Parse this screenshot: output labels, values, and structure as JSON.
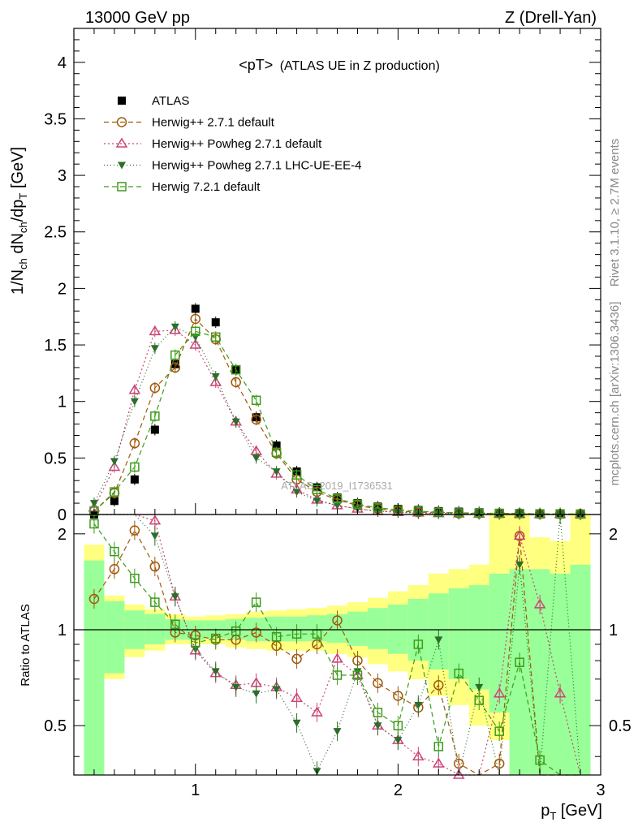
{
  "header": {
    "energy": "13000 GeV pp",
    "process": "Z (Drell-Yan)",
    "plot_title_main": "<pT>",
    "plot_title_sub": "(ATLAS UE in Z production)",
    "rivet_note": "Rivet 3.1.10, ≥ 2.7M events",
    "mcplots_note": "mcplots.cern.ch [arXiv:1306.3436]",
    "analysis_id": "ATLAS_2019_I1736531"
  },
  "axes": {
    "ylabel_main": "1/N_ch dN_ch/dp_T [GeV]",
    "ylabel_ratio": "Ratio to ATLAS",
    "xlabel": "p_T [GeV]"
  },
  "colors": {
    "data": "#000000",
    "herwigpp": "#a0580a",
    "powheg": "#cc4477",
    "powheg_ee4": "#2a6e2a",
    "herwig7": "#3d9b1a",
    "band_inner": "#99ff99",
    "band_outer": "#ffff80"
  },
  "chart_data": {
    "type": "line",
    "xlim": [
      0.4,
      3.0
    ],
    "ylim_main": [
      0,
      4.3
    ],
    "ylim_ratio": [
      0.35,
      2.3
    ],
    "xticks": [
      1,
      2,
      3
    ],
    "yticks_main": [
      0,
      0.5,
      1,
      1.5,
      2,
      2.5,
      3,
      3.5,
      4
    ],
    "yticks_ratio": [
      0.5,
      1,
      2
    ],
    "x": [
      0.5,
      0.6,
      0.7,
      0.8,
      0.9,
      1.0,
      1.1,
      1.2,
      1.3,
      1.4,
      1.5,
      1.6,
      1.7,
      1.8,
      1.9,
      2.0,
      2.1,
      2.2,
      2.3,
      2.4,
      2.5,
      2.6,
      2.7,
      2.8,
      2.9
    ],
    "series": [
      {
        "name": "ATLAS",
        "key": "data",
        "marker": "square-filled",
        "values": [
          0.0,
          0.12,
          0.31,
          0.75,
          1.33,
          1.82,
          1.7,
          1.28,
          0.86,
          0.61,
          0.38,
          0.24,
          0.15,
          0.1,
          0.07,
          0.05,
          0.04,
          0.03,
          0.025,
          0.02,
          0.015,
          0.012,
          0.01,
          0.01,
          0.0
        ],
        "ratio": []
      },
      {
        "name": "Herwig++ 2.7.1 default",
        "key": "herwigpp",
        "marker": "circle-open",
        "dash": "6,4",
        "values": [
          0.03,
          0.19,
          0.63,
          1.12,
          1.3,
          1.73,
          1.55,
          1.17,
          0.84,
          0.54,
          0.31,
          0.2,
          0.13,
          0.08,
          0.05,
          0.03,
          0.02,
          0.02,
          0.01,
          0.01,
          0.01,
          0.01,
          0.005,
          0.005,
          0.005
        ],
        "ratio": [
          1.25,
          1.55,
          2.05,
          1.58,
          0.98,
          0.96,
          0.93,
          0.93,
          0.98,
          0.89,
          0.81,
          0.9,
          1.07,
          0.8,
          0.68,
          0.62,
          0.57,
          0.67,
          0.38,
          0.3,
          0.38,
          1.97,
          0.3,
          0.3,
          0.3
        ]
      },
      {
        "name": "Herwig++ Powheg 2.7.1 default",
        "key": "powheg",
        "marker": "triangle-open",
        "dash": "2,3",
        "values": [
          0.06,
          0.42,
          1.1,
          1.62,
          1.63,
          1.5,
          1.17,
          0.82,
          0.56,
          0.36,
          0.22,
          0.13,
          0.08,
          0.05,
          0.03,
          0.02,
          0.015,
          0.01,
          0.008,
          0.006,
          0.005,
          0.004,
          0.003,
          0.003,
          0.002
        ],
        "ratio": [
          2.4,
          3.2,
          3.5,
          2.2,
          1.27,
          0.86,
          0.73,
          0.67,
          0.68,
          0.66,
          0.61,
          0.55,
          0.81,
          0.72,
          0.5,
          0.45,
          0.4,
          0.38,
          0.35,
          0.3,
          0.63,
          1.97,
          1.2,
          0.63,
          0.3
        ]
      },
      {
        "name": "Herwig++ Powheg 2.7.1 LHC-UE-EE-4",
        "key": "powheg_ee4",
        "marker": "triangle-down-filled",
        "dash": "1,3",
        "values": [
          0.1,
          0.47,
          1.0,
          1.47,
          1.66,
          1.57,
          1.22,
          0.82,
          0.5,
          0.38,
          0.2,
          0.12,
          0.08,
          0.05,
          0.03,
          0.02,
          0.01,
          0.01,
          0.008,
          0.006,
          0.005,
          0.004,
          0.003,
          0.002,
          0.002
        ],
        "ratio": [
          2.6,
          3.4,
          3.3,
          1.97,
          1.27,
          0.87,
          0.74,
          0.66,
          0.63,
          0.65,
          0.51,
          0.36,
          0.48,
          0.74,
          0.5,
          0.45,
          0.58,
          0.93,
          0.33,
          0.66,
          0.3,
          1.6,
          0.3,
          2.3,
          0.3
        ]
      },
      {
        "name": "Herwig 7.2.1 default",
        "key": "herwig7",
        "marker": "square-open",
        "dash": "6,4",
        "values": [
          0.03,
          0.2,
          0.42,
          0.87,
          1.41,
          1.62,
          1.57,
          1.28,
          1.01,
          0.55,
          0.35,
          0.22,
          0.14,
          0.09,
          0.06,
          0.04,
          0.03,
          0.02,
          0.015,
          0.012,
          0.01,
          0.008,
          0.006,
          0.005,
          0.004
        ],
        "ratio": [
          2.15,
          1.76,
          1.45,
          1.22,
          1.04,
          0.91,
          0.94,
          0.99,
          1.22,
          0.95,
          0.97,
          0.97,
          0.72,
          0.72,
          0.55,
          0.5,
          0.9,
          0.43,
          0.73,
          0.6,
          0.48,
          0.79,
          0.39,
          0.3,
          0.3
        ]
      }
    ],
    "ratio_band_inner": [
      [
        0.35,
        1.65
      ],
      [
        0.73,
        1.23
      ],
      [
        0.87,
        1.15
      ],
      [
        0.9,
        1.12
      ],
      [
        0.93,
        1.08
      ],
      [
        0.93,
        1.07
      ],
      [
        0.94,
        1.07
      ],
      [
        0.93,
        1.08
      ],
      [
        0.92,
        1.09
      ],
      [
        0.92,
        1.1
      ],
      [
        0.92,
        1.1
      ],
      [
        0.92,
        1.11
      ],
      [
        0.91,
        1.12
      ],
      [
        0.89,
        1.14
      ],
      [
        0.87,
        1.17
      ],
      [
        0.84,
        1.2
      ],
      [
        0.8,
        1.25
      ],
      [
        0.75,
        1.3
      ],
      [
        0.7,
        1.35
      ],
      [
        0.65,
        1.38
      ],
      [
        0.55,
        1.5
      ],
      [
        0.35,
        1.55
      ],
      [
        0.35,
        1.55
      ],
      [
        0.35,
        1.5
      ],
      [
        0.35,
        1.6
      ]
    ],
    "ratio_band_outer": [
      [
        0.35,
        1.85
      ],
      [
        0.7,
        1.28
      ],
      [
        0.82,
        1.2
      ],
      [
        0.86,
        1.16
      ],
      [
        0.9,
        1.12
      ],
      [
        0.9,
        1.1
      ],
      [
        0.9,
        1.11
      ],
      [
        0.88,
        1.12
      ],
      [
        0.87,
        1.14
      ],
      [
        0.86,
        1.15
      ],
      [
        0.86,
        1.16
      ],
      [
        0.86,
        1.17
      ],
      [
        0.84,
        1.19
      ],
      [
        0.82,
        1.22
      ],
      [
        0.78,
        1.26
      ],
      [
        0.74,
        1.32
      ],
      [
        0.7,
        1.38
      ],
      [
        0.62,
        1.5
      ],
      [
        0.58,
        1.55
      ],
      [
        0.5,
        1.6
      ],
      [
        0.45,
        2.3
      ],
      [
        0.35,
        2.3
      ],
      [
        0.35,
        1.95
      ],
      [
        0.35,
        1.9
      ],
      [
        0.35,
        2.3
      ]
    ]
  }
}
